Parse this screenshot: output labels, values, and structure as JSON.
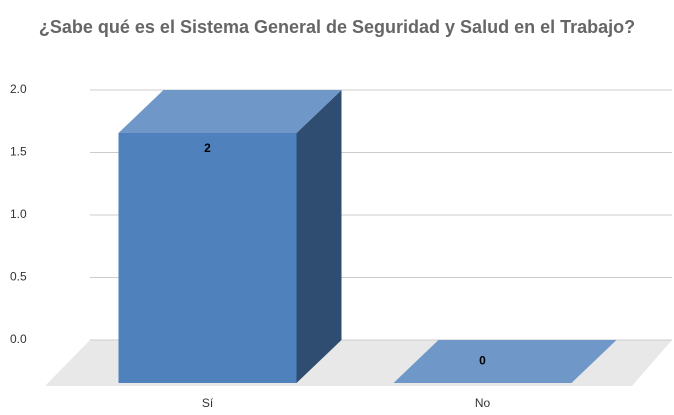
{
  "chart_data": {
    "type": "bar",
    "title": "¿Sabe qué es el Sistema General de Seguridad y Salud en el Trabajo?",
    "categories": [
      "Sí",
      "No"
    ],
    "values": [
      2,
      0
    ],
    "color": "#4f81bd",
    "ylim": [
      0,
      2
    ],
    "yticks": [
      {
        "value": 0,
        "label": "0.0"
      },
      {
        "value": 0.5,
        "label": "0.5"
      },
      {
        "value": 1,
        "label": "1.0"
      },
      {
        "value": 1.5,
        "label": "1.5"
      },
      {
        "value": 2,
        "label": "2.0"
      }
    ],
    "grid": true
  }
}
